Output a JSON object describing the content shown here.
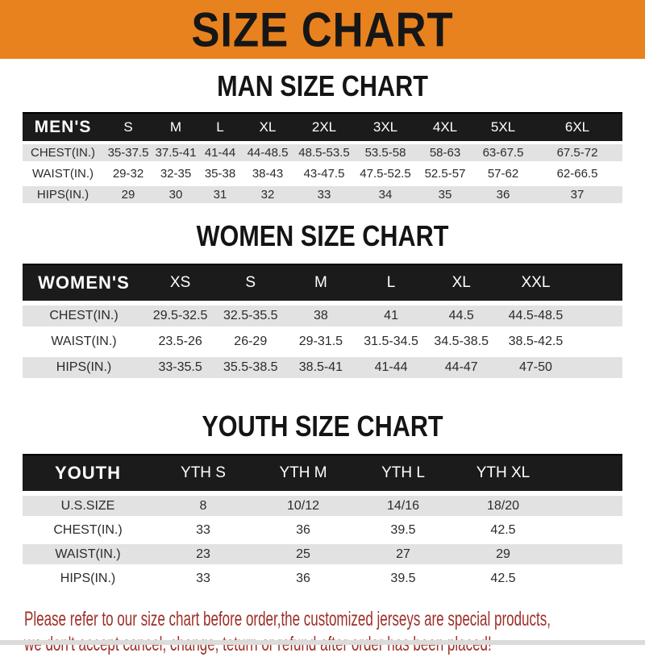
{
  "banner": {
    "title": "SIZE CHART"
  },
  "colors": {
    "banner_bg": "#E8821E",
    "bar_black": "#1B1B1B",
    "row_gray": "#E2E2E2",
    "footer_red": "#9E2F28"
  },
  "sections": [
    {
      "title": "MAN SIZE CHART",
      "table": {
        "label": "MEN'S",
        "columns": [
          "S",
          "M",
          "L",
          "XL",
          "2XL",
          "3XL",
          "4XL",
          "5XL",
          "6XL"
        ],
        "rows": [
          {
            "label": "CHEST(IN.)",
            "values": [
              "35-37.5",
              "37.5-41",
              "41-44",
              "44-48.5",
              "48.5-53.5",
              "53.5-58",
              "58-63",
              "63-67.5",
              "67.5-72"
            ]
          },
          {
            "label": "WAIST(IN.)",
            "values": [
              "29-32",
              "32-35",
              "35-38",
              "38-43",
              "43-47.5",
              "47.5-52.5",
              "52.5-57",
              "57-62",
              "62-66.5"
            ]
          },
          {
            "label": "HIPS(IN.)",
            "values": [
              "29",
              "30",
              "31",
              "32",
              "33",
              "34",
              "35",
              "36",
              "37"
            ]
          }
        ]
      }
    },
    {
      "title": "WOMEN SIZE CHART",
      "table": {
        "label": "WOMEN'S",
        "columns": [
          "XS",
          "S",
          "M",
          "L",
          "XL",
          "XXL"
        ],
        "rows": [
          {
            "label": "CHEST(IN.)",
            "values": [
              "29.5-32.5",
              "32.5-35.5",
              "38",
              "41",
              "44.5",
              "44.5-48.5"
            ]
          },
          {
            "label": "WAIST(IN.)",
            "values": [
              "23.5-26",
              "26-29",
              "29-31.5",
              "31.5-34.5",
              "34.5-38.5",
              "38.5-42.5"
            ]
          },
          {
            "label": "HIPS(IN.)",
            "values": [
              "33-35.5",
              "35.5-38.5",
              "38.5-41",
              "41-44",
              "44-47",
              "47-50"
            ]
          }
        ]
      }
    },
    {
      "title": "YOUTH SIZE CHART",
      "table": {
        "label": "YOUTH",
        "columns": [
          "YTH S",
          "YTH M",
          "YTH L",
          "YTH XL"
        ],
        "rows": [
          {
            "label": "U.S.SIZE",
            "values": [
              "8",
              "10/12",
              "14/16",
              "18/20"
            ]
          },
          {
            "label": "CHEST(IN.)",
            "values": [
              "33",
              "36",
              "39.5",
              "42.5"
            ]
          },
          {
            "label": "WAIST(IN.)",
            "values": [
              "23",
              "25",
              "27",
              "29"
            ]
          },
          {
            "label": "HIPS(IN.)",
            "values": [
              "33",
              "36",
              "39.5",
              "42.5"
            ]
          }
        ]
      }
    }
  ],
  "footer": {
    "line1": "Please refer to our size chart before order,the customized jerseys are special products,",
    "line2": "we don't accept cancel, change, teturn or refund after order has been placed!"
  }
}
